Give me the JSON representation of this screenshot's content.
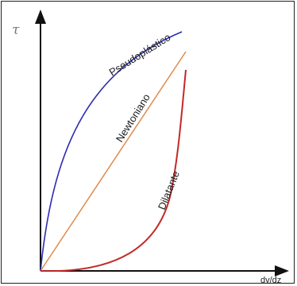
{
  "axes": {
    "y_label": "τ",
    "x_label": "dv/dz"
  },
  "curves": [
    {
      "label": "Pseudoplástico",
      "color": "#2b2bb3"
    },
    {
      "label": "Newtoniano",
      "color": "#e08a4a"
    },
    {
      "label": "Dilatante",
      "color": "#c42828"
    }
  ],
  "colors": {
    "axis": "#111111",
    "frame": "#222222",
    "background": "#ffffff"
  }
}
